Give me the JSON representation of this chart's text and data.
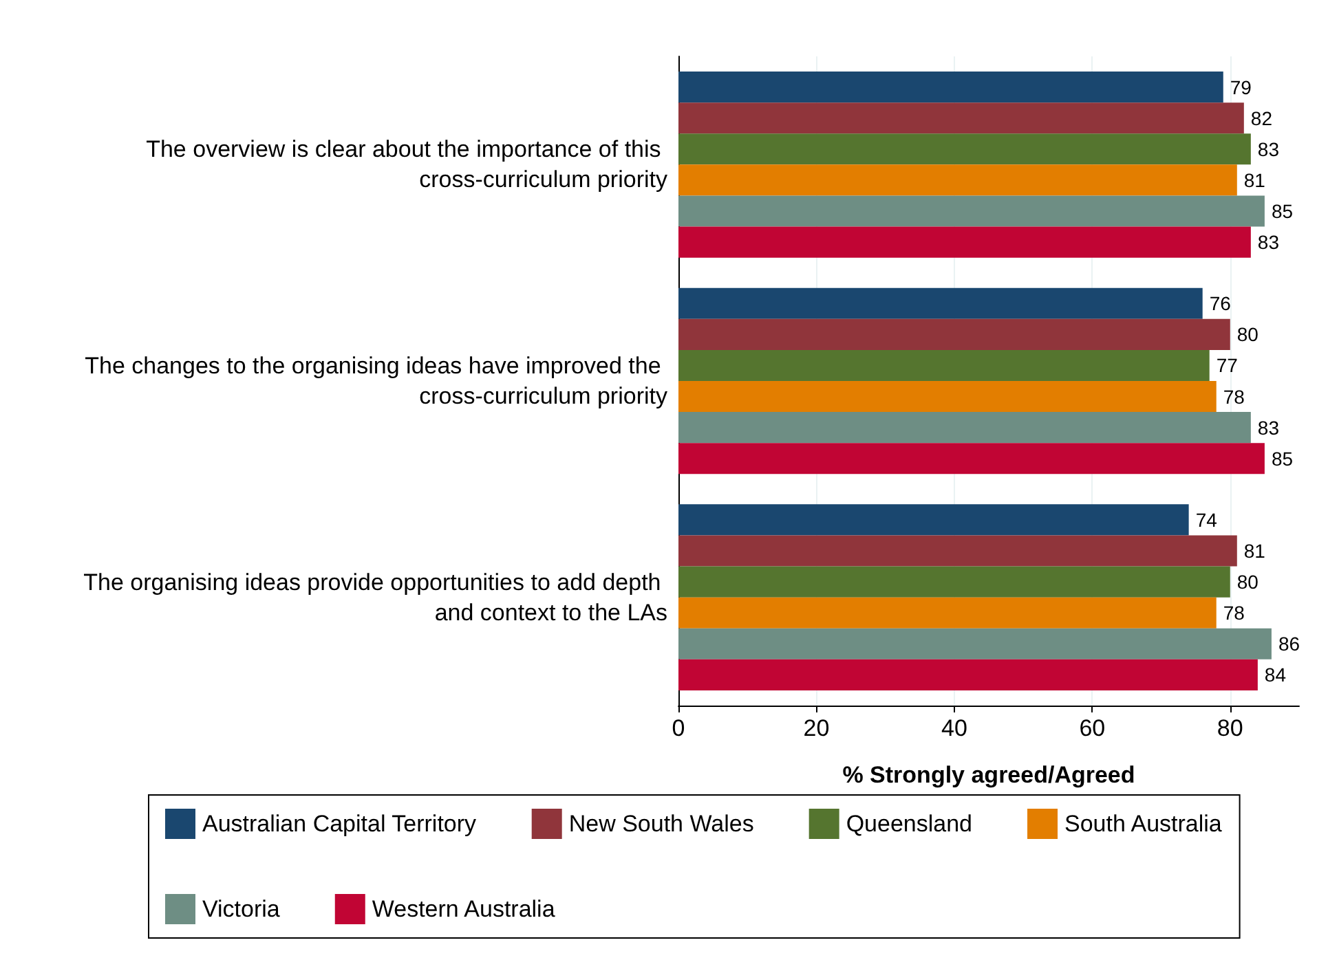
{
  "chart_data": {
    "type": "bar",
    "orientation": "horizontal",
    "xlabel": "% Strongly agreed/Agreed",
    "categories": [
      "The overview is clear about the importance of this cross-curriculum priority",
      "The changes to the organising ideas have improved the cross-curriculum priority",
      "The organising ideas provide opportunities to add depth and context to the LAs"
    ],
    "series": [
      {
        "name": "Australian Capital Territory",
        "color": "#1a476f",
        "values": [
          79,
          76,
          74
        ]
      },
      {
        "name": "New South Wales",
        "color": "#90353b",
        "values": [
          82,
          80,
          81
        ]
      },
      {
        "name": "Queensland",
        "color": "#55752f",
        "values": [
          83,
          77,
          80
        ]
      },
      {
        "name": "South Australia",
        "color": "#e37e00",
        "values": [
          81,
          78,
          78
        ]
      },
      {
        "name": "Victoria",
        "color": "#6e8e84",
        "values": [
          85,
          83,
          86
        ]
      },
      {
        "name": "Western Australia",
        "color": "#c10534",
        "values": [
          83,
          85,
          84
        ]
      }
    ],
    "xlim": [
      0,
      90
    ],
    "xticks": [
      0,
      20,
      40,
      60,
      80
    ],
    "grid": "x",
    "legend": "bottom",
    "data_labels": true
  }
}
